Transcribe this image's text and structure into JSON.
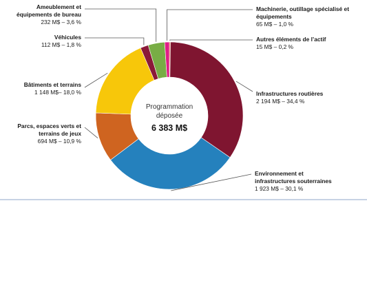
{
  "chart_data": {
    "type": "pie",
    "variant": "donut",
    "center_label": [
      "Programmation",
      "déposée"
    ],
    "center_total": "6 383 M$",
    "slices": [
      {
        "name": "Infrastructures routières",
        "name_lines": [
          "Infrastructures routières"
        ],
        "value": 2194,
        "value_label": "2 194 M$ – 34,4 %",
        "percent": 34.4,
        "color": "#7f1530"
      },
      {
        "name": "Environnement et infrastructures souterraines",
        "name_lines": [
          "Environnement et",
          "infrastructures souterraines"
        ],
        "value": 1923,
        "value_label": "1 923 M$ – 30,1 %",
        "percent": 30.1,
        "color": "#2581bd"
      },
      {
        "name": "Parcs, espaces verts et terrains de jeux",
        "name_lines": [
          "Parcs, espaces verts et",
          "terrains de jeux"
        ],
        "value": 694,
        "value_label": "694 M$ – 10,9 %",
        "percent": 10.9,
        "color": "#cf6420"
      },
      {
        "name": "Bâtiments et terrains",
        "name_lines": [
          "Bâtiments et terrains"
        ],
        "value": 1148,
        "value_label": "1 148 M$– 18,0 %",
        "percent": 18.0,
        "color": "#f7c70a"
      },
      {
        "name": "Véhicules",
        "name_lines": [
          "Véhicules"
        ],
        "value": 112,
        "value_label": "112 M$ – 1,8 %",
        "percent": 1.8,
        "color": "#8a1a38"
      },
      {
        "name": "Ameublement et équipements de bureau",
        "name_lines": [
          "Ameublement et",
          "équipements de bureau"
        ],
        "value": 232,
        "value_label": "232 M$ – 3,6 %",
        "percent": 3.6,
        "color": "#78ad45"
      },
      {
        "name": "Machinerie, outillage spécialisé et équipements",
        "name_lines": [
          "Machinerie, outillage spécialisé et",
          "équipements"
        ],
        "value": 65,
        "value_label": "65 M$ – 1,0 %",
        "percent": 1.0,
        "color": "#e01e86"
      },
      {
        "name": "Autres éléments de l’actif",
        "name_lines": [
          "Autres éléments de l’actif"
        ],
        "value": 15,
        "value_label": "15 M$ – 0,2 %",
        "percent": 0.2,
        "color": "#ef5d35"
      }
    ]
  }
}
